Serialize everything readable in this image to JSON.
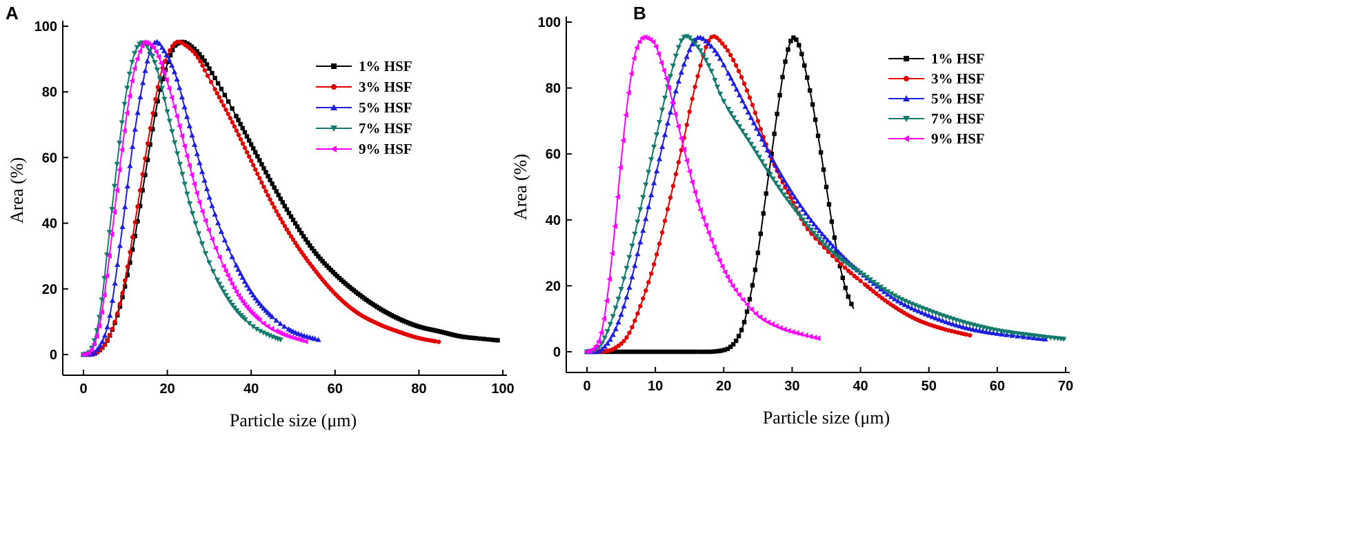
{
  "chart_data": [
    {
      "panel": "A",
      "type": "line",
      "xlabel": "Particle size (μm)",
      "ylabel": "Area (%)",
      "xlim": [
        0,
        100
      ],
      "ylim": [
        0,
        100
      ],
      "xticks": [
        0,
        20,
        40,
        60,
        80,
        100
      ],
      "yticks": [
        0,
        20,
        40,
        60,
        80,
        100
      ],
      "grid": false,
      "legend_position": "top-right",
      "series": [
        {
          "name": "1% HSF",
          "color": "#000000",
          "marker": "square",
          "x": [
            0,
            3,
            6,
            9,
            12,
            15,
            18,
            21,
            23,
            25,
            28,
            31,
            35,
            40,
            45,
            50,
            55,
            60,
            65,
            70,
            75,
            80,
            85,
            90,
            95,
            99
          ],
          "y": [
            0,
            0.5,
            5,
            16,
            34,
            57,
            79,
            92,
            95,
            94.5,
            91,
            85,
            76,
            64,
            52,
            41,
            31.5,
            24.5,
            19,
            14.5,
            11,
            8.5,
            7,
            5.5,
            4.8,
            4.3
          ]
        },
        {
          "name": "3% HSF",
          "color": "#e00000",
          "marker": "circle",
          "x": [
            0,
            3,
            6,
            9,
            12,
            15,
            18,
            20,
            22,
            24,
            27,
            30,
            35,
            40,
            45,
            50,
            55,
            60,
            65,
            70,
            75,
            80,
            85
          ],
          "y": [
            0,
            0.5,
            5,
            17,
            38,
            62,
            83,
            91,
            95,
            94.5,
            91,
            84,
            72,
            59,
            46,
            35,
            26,
            18.5,
            13,
            9.5,
            7,
            5,
            3.8
          ]
        },
        {
          "name": "5% HSF",
          "color": "#1e1ee0",
          "marker": "triangle-up",
          "x": [
            0,
            3,
            6,
            9,
            12,
            15,
            17,
            19,
            22,
            25,
            28,
            31,
            35,
            40,
            45,
            50,
            56
          ],
          "y": [
            0,
            1,
            10,
            36,
            66,
            88,
            95,
            93,
            85,
            71,
            57,
            44,
            31,
            19,
            11.5,
            7,
            4.5
          ]
        },
        {
          "name": "7% HSF",
          "color": "#157a6e",
          "marker": "triangle-down",
          "x": [
            0,
            2,
            4,
            6,
            8,
            10,
            12,
            14,
            16,
            18,
            20,
            23,
            26,
            30,
            35,
            40,
            44,
            47
          ],
          "y": [
            0,
            2,
            13,
            35,
            58,
            78,
            91,
            95,
            92,
            85,
            74,
            58,
            43,
            28,
            16,
            9,
            6,
            4.5
          ]
        },
        {
          "name": "9% HSF",
          "color": "#ff00ff",
          "marker": "triangle-left",
          "x": [
            0,
            2,
            4,
            6,
            8,
            10,
            12,
            14,
            15,
            17,
            19,
            22,
            25,
            28,
            32,
            37,
            42,
            47,
            53
          ],
          "y": [
            0,
            1.5,
            10,
            28,
            50,
            70,
            86,
            94,
            95,
            93,
            87,
            74,
            59,
            45,
            31,
            18,
            10.5,
            6.5,
            4
          ]
        }
      ]
    },
    {
      "panel": "B",
      "type": "line",
      "xlabel": "Particle size (μm)",
      "ylabel": "Area (%)",
      "xlim": [
        0,
        70
      ],
      "ylim": [
        0,
        100
      ],
      "xticks": [
        0,
        10,
        20,
        30,
        40,
        50,
        60,
        70
      ],
      "yticks": [
        0,
        20,
        40,
        60,
        80,
        100
      ],
      "grid": false,
      "legend_position": "top-right",
      "series": [
        {
          "name": "1% HSF",
          "color": "#000000",
          "marker": "square",
          "x": [
            0,
            5,
            10,
            15,
            18,
            20,
            21,
            22,
            23,
            24,
            25,
            26,
            27,
            28,
            29,
            30,
            31,
            32,
            33,
            34,
            35,
            36,
            37,
            38,
            39
          ],
          "y": [
            0,
            0,
            0,
            0,
            0,
            0.5,
            1.5,
            4,
            9,
            18,
            30,
            45,
            60,
            75,
            88,
            95,
            93,
            85,
            75,
            63,
            50,
            37,
            26,
            18,
            13
          ]
        },
        {
          "name": "3% HSF",
          "color": "#e00000",
          "marker": "circle",
          "x": [
            0,
            2,
            4,
            6,
            8,
            10,
            12,
            14,
            16,
            18,
            20,
            22,
            24,
            26,
            28,
            30,
            32,
            35,
            38,
            40,
            44,
            48,
            52,
            56
          ],
          "y": [
            0,
            0,
            1,
            5,
            15,
            28,
            45,
            63,
            82,
            95,
            93,
            86,
            76,
            64,
            54,
            46,
            38,
            31,
            25,
            21.5,
            15,
            10,
            7,
            5
          ]
        },
        {
          "name": "5% HSF",
          "color": "#1e1ee0",
          "marker": "triangle-up",
          "x": [
            0,
            2,
            4,
            6,
            8,
            10,
            12,
            14,
            16,
            18,
            20,
            24,
            28,
            32,
            36,
            40,
            45,
            50,
            55,
            60,
            67
          ],
          "y": [
            0,
            0.5,
            6,
            18,
            35,
            53,
            71,
            86,
            95,
            93,
            87,
            71,
            55,
            42,
            32,
            24,
            16,
            11,
            7.5,
            5.5,
            3.8
          ]
        },
        {
          "name": "7% HSF",
          "color": "#157a6e",
          "marker": "triangle-down",
          "x": [
            0,
            2,
            4,
            6,
            8,
            10,
            12,
            14,
            16,
            18,
            20,
            24,
            28,
            32,
            36,
            40,
            45,
            50,
            55,
            60,
            65,
            70
          ],
          "y": [
            0,
            2,
            12,
            27,
            45,
            64,
            82,
            95,
            93,
            86,
            76,
            63,
            50,
            39,
            30,
            24,
            17,
            12.5,
            9,
            6.5,
            5,
            3.8
          ]
        },
        {
          "name": "9% HSF",
          "color": "#ff00ff",
          "marker": "triangle-left",
          "x": [
            0,
            1,
            2,
            3,
            4,
            5,
            6,
            7,
            8,
            9,
            10,
            11,
            12,
            14,
            16,
            18,
            20,
            22,
            25,
            28,
            31,
            34
          ],
          "y": [
            0,
            1,
            5,
            17,
            36,
            58,
            77,
            90,
            95,
            95,
            93,
            87,
            80,
            63,
            47,
            35,
            25,
            18,
            11,
            7.5,
            5.5,
            4
          ]
        }
      ]
    }
  ]
}
